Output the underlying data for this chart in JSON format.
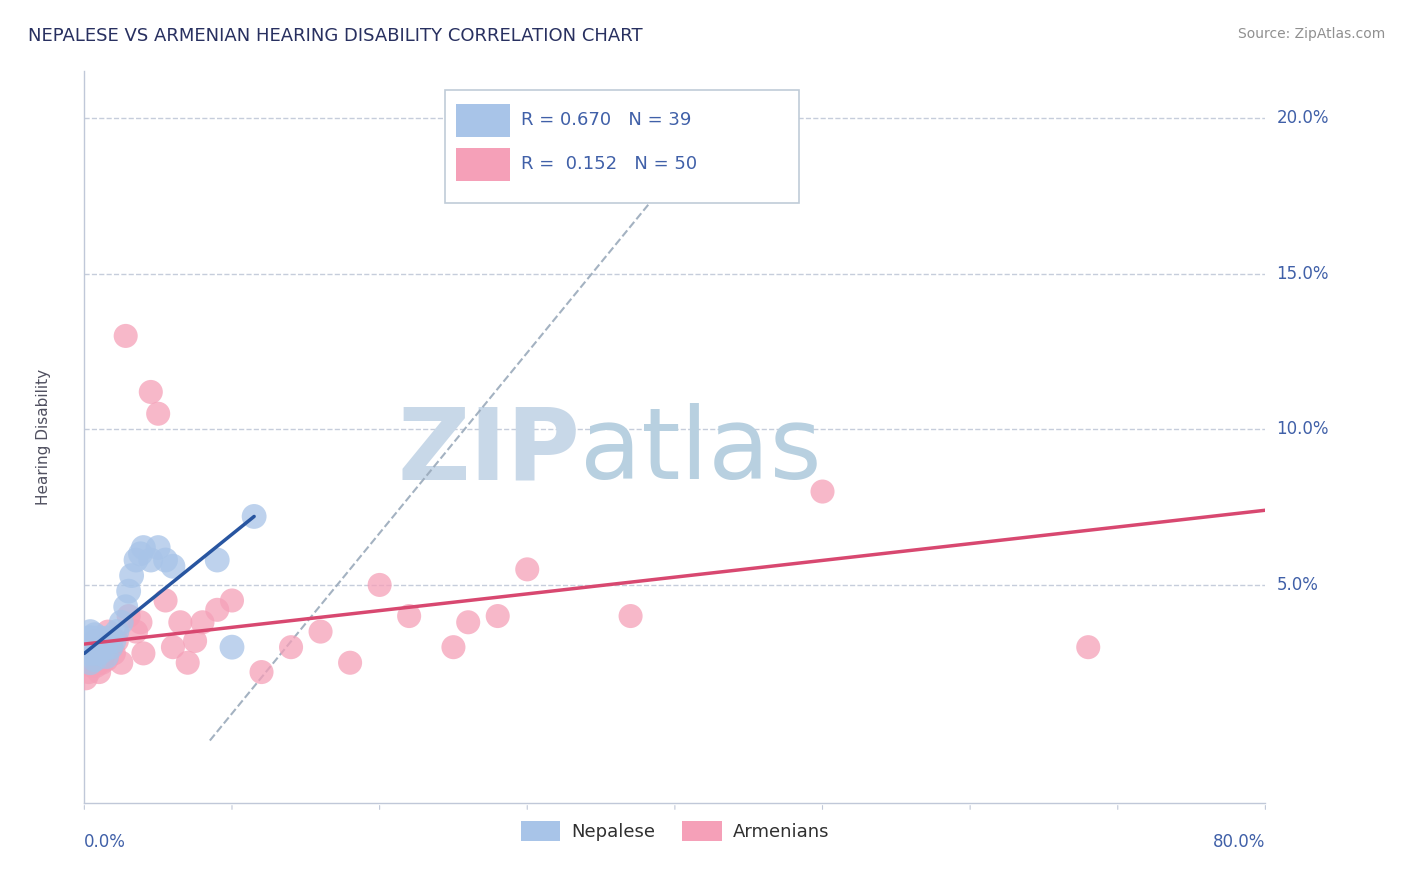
{
  "title": "NEPALESE VS ARMENIAN HEARING DISABILITY CORRELATION CHART",
  "source": "Source: ZipAtlas.com",
  "ylabel": "Hearing Disability",
  "xlim": [
    0.0,
    0.8
  ],
  "ylim": [
    -0.02,
    0.215
  ],
  "yticks": [
    0.0,
    0.05,
    0.1,
    0.15,
    0.2
  ],
  "ytick_labels": [
    "",
    "5.0%",
    "10.0%",
    "15.0%",
    "20.0%"
  ],
  "nepalese_R": 0.67,
  "nepalese_N": 39,
  "armenian_R": 0.152,
  "armenian_N": 50,
  "nepalese_color": "#a8c4e8",
  "armenian_color": "#f5a0b8",
  "nepalese_line_color": "#2855a0",
  "armenian_line_color": "#d84870",
  "dashed_line_color": "#9aaabb",
  "grid_color": "#c0c8d8",
  "title_color": "#283060",
  "axis_color": "#4060a8",
  "watermark_zip_color": "#c8d8e8",
  "watermark_atlas_color": "#b8d0e0",
  "background_color": "#ffffff",
  "nepalese_x": [
    0.001,
    0.002,
    0.003,
    0.003,
    0.004,
    0.004,
    0.005,
    0.005,
    0.006,
    0.006,
    0.007,
    0.007,
    0.008,
    0.009,
    0.01,
    0.01,
    0.011,
    0.012,
    0.013,
    0.014,
    0.015,
    0.016,
    0.018,
    0.02,
    0.022,
    0.025,
    0.028,
    0.03,
    0.032,
    0.035,
    0.038,
    0.04,
    0.045,
    0.05,
    0.055,
    0.06,
    0.09,
    0.1,
    0.115
  ],
  "nepalese_y": [
    0.03,
    0.032,
    0.028,
    0.033,
    0.025,
    0.035,
    0.03,
    0.033,
    0.028,
    0.032,
    0.026,
    0.034,
    0.03,
    0.029,
    0.033,
    0.028,
    0.03,
    0.032,
    0.029,
    0.031,
    0.027,
    0.033,
    0.03,
    0.032,
    0.035,
    0.038,
    0.043,
    0.048,
    0.053,
    0.058,
    0.06,
    0.062,
    0.058,
    0.062,
    0.058,
    0.056,
    0.058,
    0.03,
    0.072
  ],
  "armenian_x": [
    0.001,
    0.002,
    0.003,
    0.004,
    0.005,
    0.005,
    0.006,
    0.007,
    0.008,
    0.009,
    0.01,
    0.01,
    0.011,
    0.012,
    0.013,
    0.014,
    0.015,
    0.016,
    0.018,
    0.02,
    0.022,
    0.025,
    0.028,
    0.03,
    0.035,
    0.038,
    0.04,
    0.045,
    0.05,
    0.055,
    0.06,
    0.065,
    0.07,
    0.075,
    0.08,
    0.09,
    0.1,
    0.12,
    0.14,
    0.16,
    0.18,
    0.2,
    0.22,
    0.25,
    0.26,
    0.28,
    0.3,
    0.37,
    0.5,
    0.68
  ],
  "armenian_y": [
    0.02,
    0.025,
    0.022,
    0.028,
    0.03,
    0.024,
    0.026,
    0.032,
    0.024,
    0.028,
    0.022,
    0.025,
    0.03,
    0.025,
    0.028,
    0.032,
    0.026,
    0.035,
    0.03,
    0.028,
    0.032,
    0.025,
    0.13,
    0.04,
    0.035,
    0.038,
    0.028,
    0.112,
    0.105,
    0.045,
    0.03,
    0.038,
    0.025,
    0.032,
    0.038,
    0.042,
    0.045,
    0.022,
    0.03,
    0.035,
    0.025,
    0.05,
    0.04,
    0.03,
    0.038,
    0.04,
    0.055,
    0.04,
    0.08,
    0.03
  ],
  "nep_line_x": [
    0.0,
    0.115
  ],
  "nep_line_y": [
    0.028,
    0.072
  ],
  "arm_line_x": [
    0.0,
    0.8
  ],
  "arm_line_y": [
    0.031,
    0.074
  ],
  "dash_line_x": [
    0.085,
    0.43
  ],
  "dash_line_y": [
    0.0,
    0.2
  ]
}
